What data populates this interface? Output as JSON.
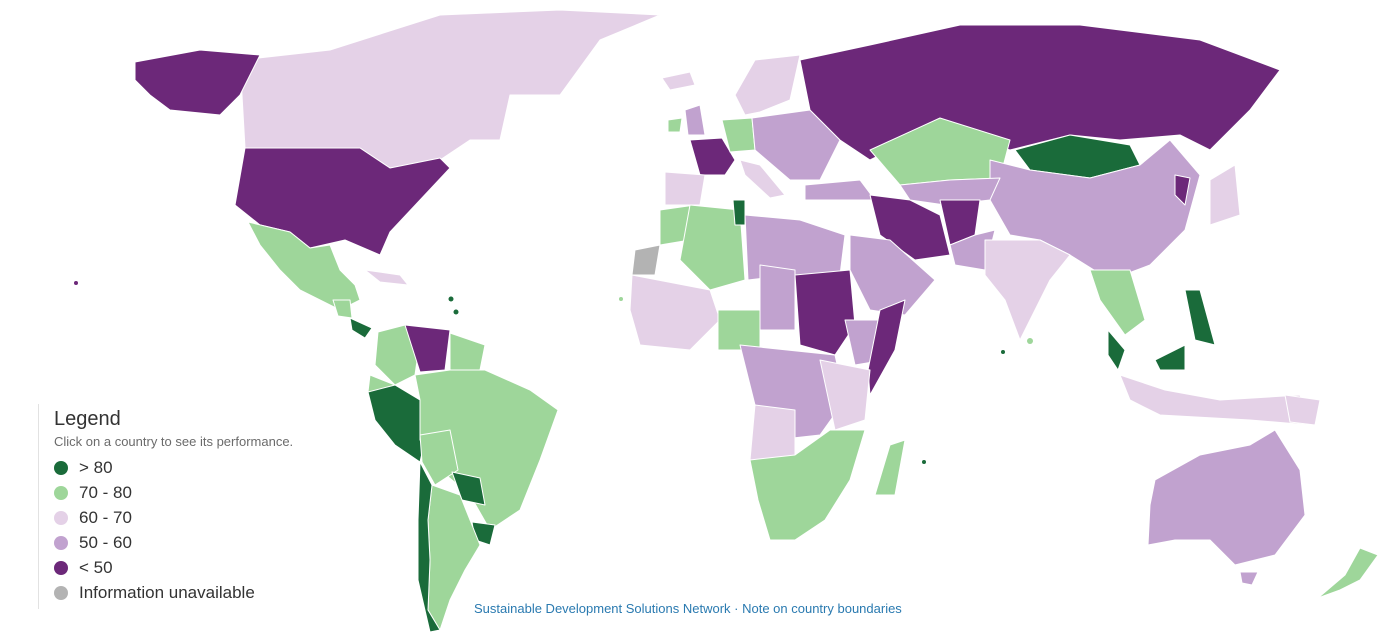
{
  "legend": {
    "title": "Legend",
    "subtitle": "Click on a country to see its performance.",
    "items": [
      {
        "label": "> 80",
        "color": "#1a6b3a"
      },
      {
        "label": "70 - 80",
        "color": "#9ed69a"
      },
      {
        "label": "60 - 70",
        "color": "#e4d1e7"
      },
      {
        "label": "50 - 60",
        "color": "#c1a2cf"
      },
      {
        "label": "< 50",
        "color": "#6c2879"
      },
      {
        "label": "Information unavailable",
        "color": "#b3b3b3"
      }
    ]
  },
  "footer": {
    "source": "Sustainable Development Solutions Network",
    "separator": " · ",
    "note": "Note on country boundaries"
  },
  "colors": {
    "gt80": "#1a6b3a",
    "r70_80": "#9ed69a",
    "r60_70": "#e4d1e7",
    "r50_60": "#c1a2cf",
    "lt50": "#6c2879",
    "na": "#b3b3b3"
  }
}
